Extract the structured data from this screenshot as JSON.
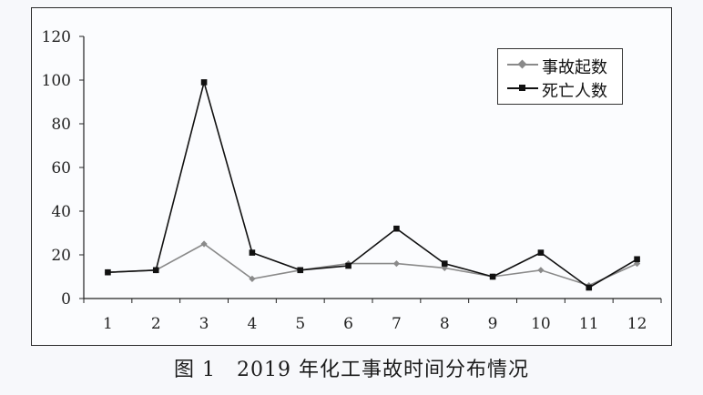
{
  "caption": "图 1　2019 年化工事故时间分布情况",
  "chart_data": {
    "type": "line",
    "categories": [
      "1",
      "2",
      "3",
      "4",
      "5",
      "6",
      "7",
      "8",
      "9",
      "10",
      "11",
      "12"
    ],
    "ylim": [
      0,
      120
    ],
    "yticks": [
      "0",
      "20",
      "40",
      "60",
      "80",
      "100",
      "120"
    ],
    "legend_position": "top-right",
    "series": [
      {
        "name": "事故起数",
        "color": "#8a8a8a",
        "marker": "diamond",
        "values": [
          12,
          13,
          25,
          9,
          13,
          16,
          16,
          14,
          10,
          13,
          6,
          16
        ]
      },
      {
        "name": "死亡人数",
        "color": "#111111",
        "marker": "square",
        "values": [
          12,
          13,
          99,
          21,
          13,
          15,
          32,
          16,
          10,
          21,
          5,
          18
        ]
      }
    ]
  }
}
